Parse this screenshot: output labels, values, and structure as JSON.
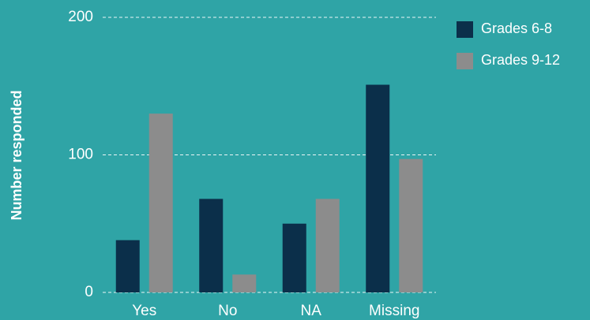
{
  "chart_data": {
    "type": "bar",
    "y_label": "Number responded",
    "categories": [
      "Yes",
      "No",
      "NA",
      "Missing"
    ],
    "series": [
      {
        "name": "Grades 6-8",
        "color": "#0b2f4a",
        "values": [
          38,
          68,
          50,
          151
        ]
      },
      {
        "name": "Grades 9-12",
        "color": "#8c8c8c",
        "values": [
          130,
          13,
          68,
          97
        ]
      }
    ],
    "ylim": [
      0,
      200
    ],
    "yticks": [
      0,
      100,
      200
    ],
    "grid": true,
    "legend": "top-right"
  }
}
